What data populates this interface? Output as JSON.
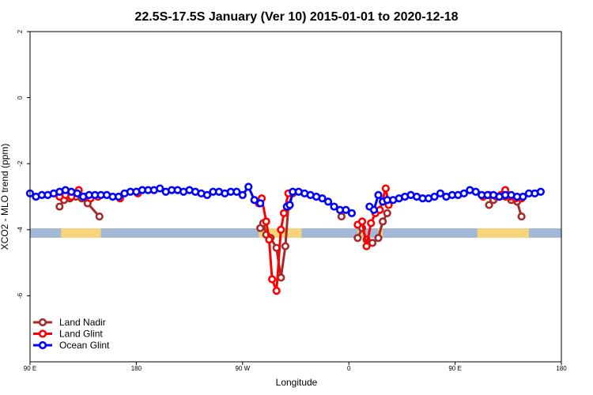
{
  "chart_data": {
    "type": "line",
    "title": "22.5S-17.5S January (Ver 10)   2015-01-01 to 2020-12-18",
    "xlabel": "Longitude",
    "ylabel": "XCO2 - MLO trend (ppm)",
    "xlim": [
      90,
      450
    ],
    "ylim": [
      -8,
      2
    ],
    "y_ticks": [
      {
        "value": 2,
        "label": "2"
      },
      {
        "value": 0,
        "label": "0"
      },
      {
        "value": -2,
        "label": "-2"
      },
      {
        "value": -4,
        "label": "-4"
      },
      {
        "value": -6,
        "label": "-6"
      }
    ],
    "x_ticks": [
      {
        "value": 90,
        "label": "90 E"
      },
      {
        "value": 162,
        "label": "180"
      },
      {
        "value": 234,
        "label": "90 W"
      },
      {
        "value": 306,
        "label": "0"
      },
      {
        "value": 378,
        "label": "90 E"
      },
      {
        "value": 450,
        "label": "180"
      }
    ],
    "legend": {
      "position": "bottom-left",
      "entries": [
        {
          "name": "Land Nadir",
          "color": "#a52a2a"
        },
        {
          "name": "Land Glint",
          "color": "#ff0000"
        },
        {
          "name": "Ocean Glint",
          "color": "#0000ff"
        }
      ]
    },
    "background_band": {
      "y_center": -4.1,
      "ocean_color": "#a3b8d6",
      "land_color": "#f5d47a",
      "land_ranges": [
        [
          111,
          138
        ],
        [
          245,
          274
        ],
        [
          312,
          317
        ],
        [
          326,
          329
        ],
        [
          393,
          428
        ]
      ]
    },
    "series": [
      {
        "name": "Land Nadir",
        "color": "#a52a2a",
        "segments": [
          [
            [
              110,
              -3.3
            ],
            [
              113,
              -3.1
            ],
            [
              117,
              -3.05
            ],
            [
              121,
              -3.0
            ],
            [
              125,
              -3.05
            ],
            [
              129,
              -3.2
            ],
            [
              137,
              -3.6
            ]
          ],
          [
            [
              246,
              -3.95
            ],
            [
              248,
              -3.8
            ],
            [
              250,
              -4.15
            ],
            [
              253,
              -4.25
            ],
            [
              257,
              -4.55
            ],
            [
              260,
              -5.45
            ],
            [
              263,
              -4.5
            ],
            [
              265,
              -3.3
            ],
            [
              268,
              -2.9
            ]
          ],
          [
            [
              301,
              -3.6
            ]
          ],
          [
            [
              312,
              -4.25
            ],
            [
              315,
              -3.95
            ],
            [
              318,
              -4.3
            ],
            [
              322,
              -4.4
            ],
            [
              326,
              -4.25
            ],
            [
              329,
              -3.75
            ],
            [
              332,
              -3.5
            ]
          ],
          [
            [
              401,
              -3.25
            ],
            [
              404,
              -3.1
            ],
            [
              408,
              -3.0
            ],
            [
              412,
              -3.0
            ],
            [
              416,
              -3.1
            ],
            [
              420,
              -3.15
            ],
            [
              423,
              -3.6
            ]
          ]
        ]
      },
      {
        "name": "Land Glint",
        "color": "#ff0000",
        "segments": [
          [
            [
              110,
              -3.0
            ],
            [
              114,
              -2.95
            ],
            [
              118,
              -3.0
            ],
            [
              123,
              -2.8
            ],
            [
              127,
              -3.0
            ],
            [
              131,
              -3.05
            ],
            [
              136,
              -3.0
            ]
          ],
          [
            [
              151,
              -3.05
            ]
          ],
          [
            [
              163,
              -2.9
            ]
          ],
          [
            [
              245,
              -3.2
            ],
            [
              247,
              -3.05
            ],
            [
              250,
              -3.75
            ],
            [
              252,
              -4.3
            ],
            [
              254,
              -5.5
            ],
            [
              257,
              -5.85
            ],
            [
              260,
              -4.0
            ],
            [
              262,
              -3.5
            ],
            [
              265,
              -2.9
            ]
          ],
          [
            [
              312,
              -3.85
            ],
            [
              315,
              -3.75
            ],
            [
              318,
              -4.5
            ],
            [
              321,
              -3.8
            ],
            [
              324,
              -3.5
            ],
            [
              327,
              -3.4
            ],
            [
              331,
              -2.75
            ],
            [
              333,
              -3.25
            ]
          ],
          [
            [
              397,
              -3.0
            ],
            [
              401,
              -2.95
            ],
            [
              406,
              -3.0
            ],
            [
              409,
              -2.95
            ],
            [
              412,
              -2.8
            ],
            [
              415,
              -3.0
            ],
            [
              419,
              -3.05
            ],
            [
              423,
              -3.05
            ]
          ]
        ]
      },
      {
        "name": "Ocean Glint",
        "color": "#0000ff",
        "segments": [
          [
            [
              90,
              -2.9
            ],
            [
              94,
              -3.0
            ],
            [
              98,
              -2.95
            ],
            [
              102,
              -2.95
            ],
            [
              106,
              -2.9
            ],
            [
              110,
              -2.85
            ],
            [
              114,
              -2.8
            ],
            [
              118,
              -2.85
            ],
            [
              122,
              -2.9
            ],
            [
              126,
              -3.0
            ],
            [
              130,
              -2.95
            ],
            [
              134,
              -2.95
            ],
            [
              138,
              -2.95
            ],
            [
              142,
              -2.95
            ],
            [
              146,
              -3.0
            ],
            [
              150,
              -3.0
            ],
            [
              154,
              -2.9
            ],
            [
              158,
              -2.85
            ],
            [
              162,
              -2.85
            ],
            [
              166,
              -2.8
            ],
            [
              170,
              -2.8
            ],
            [
              174,
              -2.8
            ],
            [
              178,
              -2.75
            ],
            [
              182,
              -2.85
            ],
            [
              186,
              -2.8
            ],
            [
              190,
              -2.8
            ],
            [
              194,
              -2.85
            ],
            [
              198,
              -2.8
            ],
            [
              202,
              -2.85
            ],
            [
              206,
              -2.9
            ],
            [
              210,
              -2.95
            ],
            [
              214,
              -2.85
            ],
            [
              218,
              -2.85
            ],
            [
              222,
              -2.9
            ],
            [
              226,
              -2.85
            ],
            [
              230,
              -2.85
            ],
            [
              234,
              -2.95
            ],
            [
              238,
              -2.7
            ],
            [
              242,
              -3.1
            ],
            [
              246,
              -3.2
            ]
          ],
          [
            [
              264,
              -3.3
            ],
            [
              266,
              -3.25
            ],
            [
              268,
              -2.85
            ],
            [
              272,
              -2.85
            ],
            [
              276,
              -2.9
            ],
            [
              280,
              -2.95
            ],
            [
              284,
              -3.0
            ],
            [
              288,
              -3.05
            ],
            [
              292,
              -3.15
            ],
            [
              296,
              -3.3
            ],
            [
              300,
              -3.4
            ],
            [
              304,
              -3.4
            ],
            [
              308,
              -3.5
            ]
          ],
          [
            [
              320,
              -3.3
            ],
            [
              323,
              -3.4
            ],
            [
              326,
              -2.95
            ],
            [
              329,
              -3.15
            ],
            [
              332,
              -3.1
            ],
            [
              336,
              -3.1
            ],
            [
              340,
              -3.05
            ],
            [
              344,
              -3.0
            ],
            [
              348,
              -2.95
            ],
            [
              352,
              -3.0
            ],
            [
              356,
              -3.05
            ],
            [
              360,
              -3.05
            ],
            [
              364,
              -3.0
            ],
            [
              368,
              -2.9
            ],
            [
              372,
              -3.0
            ],
            [
              376,
              -2.95
            ],
            [
              380,
              -2.95
            ],
            [
              384,
              -2.9
            ],
            [
              388,
              -2.8
            ],
            [
              392,
              -2.85
            ],
            [
              396,
              -2.95
            ],
            [
              400,
              -2.95
            ],
            [
              404,
              -2.95
            ],
            [
              408,
              -3.0
            ],
            [
              412,
              -2.95
            ],
            [
              416,
              -2.95
            ],
            [
              420,
              -3.0
            ],
            [
              424,
              -3.0
            ],
            [
              428,
              -2.9
            ],
            [
              432,
              -2.9
            ],
            [
              436,
              -2.85
            ]
          ]
        ]
      }
    ]
  }
}
